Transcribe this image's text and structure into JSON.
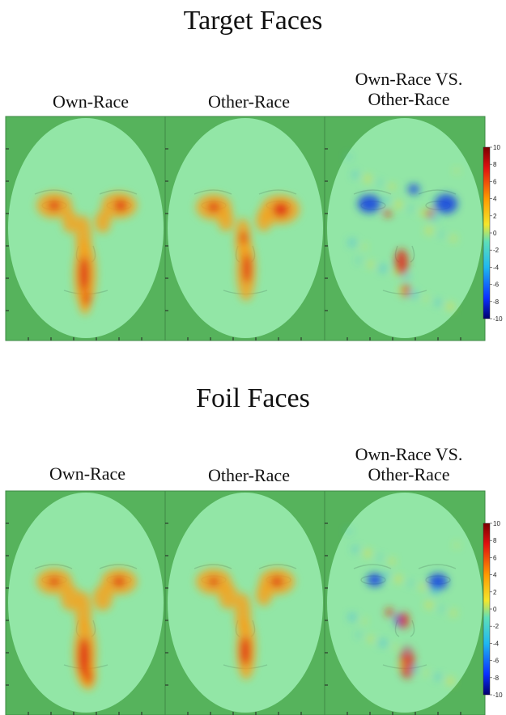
{
  "sections": [
    {
      "title": "Target Faces",
      "columns": [
        "Own-Race",
        "Other-Race",
        "Own-Race VS.\nOther-Race"
      ],
      "colorbar_ticks": [
        "10",
        "8",
        "6",
        "4",
        "2",
        "0",
        "-2",
        "-4",
        "-6",
        "-8",
        "-10"
      ]
    },
    {
      "title": "Foil Faces",
      "columns": [
        "Own-Race",
        "Other-Race",
        "Own-Race VS.\nOther-Race"
      ],
      "colorbar_ticks": [
        "10",
        "8",
        "6",
        "4",
        "2",
        "0",
        "-2",
        "-4",
        "-6",
        "-8",
        "-10"
      ]
    }
  ],
  "colors": {
    "background_green": "#56b35c",
    "face_fill": "#92e6a6",
    "hot": "#e0281a",
    "warm": "#f4a21c",
    "cold": "#1746e0"
  }
}
